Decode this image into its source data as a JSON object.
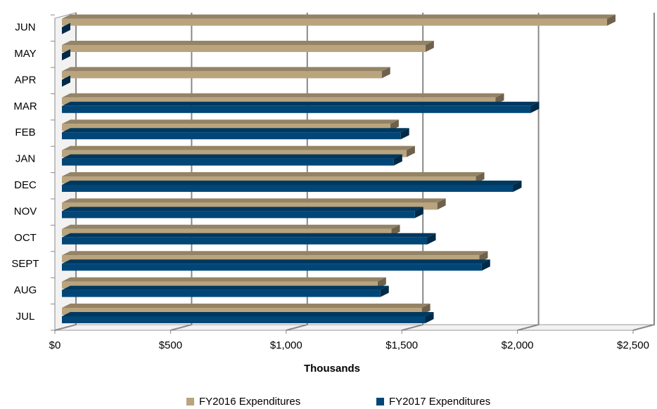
{
  "chart_data": {
    "type": "bar3d_horizontal",
    "x_label": "Thousands",
    "categories": [
      "JUL",
      "AUG",
      "SEPT",
      "OCT",
      "NOV",
      "DEC",
      "JAN",
      "FEB",
      "MAR",
      "APR",
      "MAY",
      "JUN"
    ],
    "series": [
      {
        "name": "FY2016 Expenditures",
        "color": "#b9a47e",
        "values": [
          1556,
          1365,
          1805,
          1425,
          1623,
          1790,
          1490,
          1420,
          1875,
          1383,
          1572,
          2357
        ]
      },
      {
        "name": "FY2017 Expenditures",
        "color": "#004677",
        "values": [
          1571,
          1377,
          1815,
          1580,
          1526,
          1951,
          1435,
          1465,
          2027,
          0,
          0,
          0
        ]
      }
    ],
    "xlim": [
      0,
      2500
    ],
    "xticks": [
      {
        "value": 0,
        "label": "$0"
      },
      {
        "value": 500,
        "label": "$500"
      },
      {
        "value": 1000,
        "label": "$1,000"
      },
      {
        "value": 1500,
        "label": "$1,500"
      },
      {
        "value": 2000,
        "label": "$2,000"
      },
      {
        "value": 2500,
        "label": "$2,500"
      }
    ],
    "grid": true,
    "legend": "bottom"
  }
}
